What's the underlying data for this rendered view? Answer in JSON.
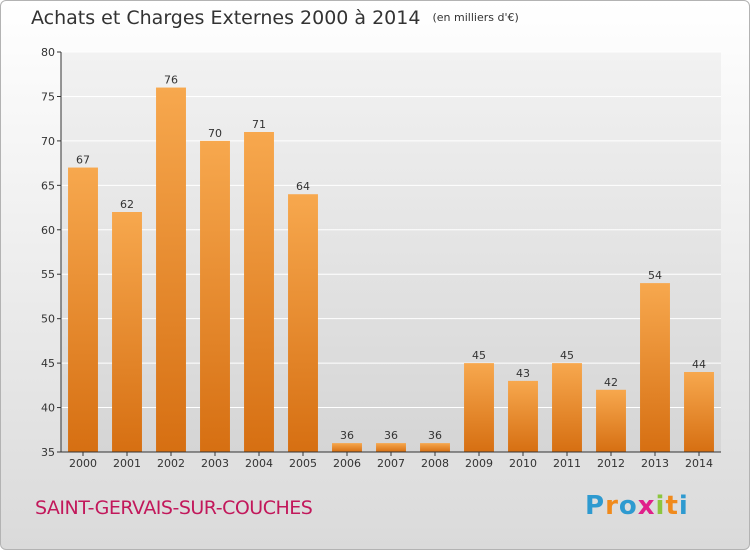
{
  "header": {
    "title": "Achats et Charges Externes 2000 à 2014",
    "subtitle": "(en milliers d'€)"
  },
  "footer": {
    "commune": "SAINT-GERVAIS-SUR-COUCHES",
    "logo_letters": [
      "P",
      "r",
      "o",
      "x",
      "i",
      "t",
      "i"
    ],
    "logo_colors": [
      "#2e9ad0",
      "#f08a1c",
      "#2e9ad0",
      "#e0208a",
      "#8cc63f",
      "#f08a1c",
      "#2e9ad0"
    ]
  },
  "colors": {
    "bar_light": "#f7a84e",
    "bar_dark": "#d66f12",
    "plot_bg_top": "#f2f2f2",
    "plot_bg_bottom": "#d5d5d5",
    "grid": "#ffffff",
    "axis": "#333333"
  },
  "chart_data": {
    "type": "bar",
    "title": "Achats et Charges Externes 2000 à 2014",
    "subtitle": "(en milliers d'€)",
    "categories": [
      "2000",
      "2001",
      "2002",
      "2003",
      "2004",
      "2005",
      "2006",
      "2007",
      "2008",
      "2009",
      "2010",
      "2011",
      "2012",
      "2013",
      "2014"
    ],
    "values": [
      67,
      62,
      76,
      70,
      71,
      64,
      36,
      36,
      36,
      45,
      43,
      45,
      42,
      54,
      44
    ],
    "ylim": [
      35,
      80
    ],
    "yticks": [
      35,
      40,
      45,
      50,
      55,
      60,
      65,
      70,
      75,
      80
    ],
    "xlabel": "",
    "ylabel": "",
    "grid": true,
    "data_labels": true
  }
}
